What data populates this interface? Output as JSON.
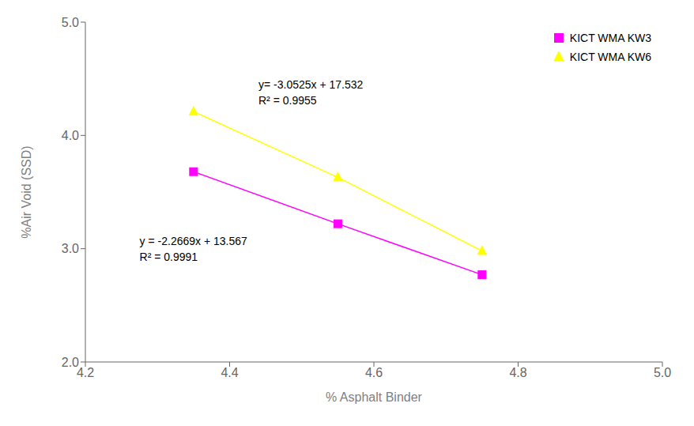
{
  "chart_data": {
    "type": "line",
    "x": [
      4.35,
      4.55,
      4.75
    ],
    "series": [
      {
        "name": "KICT WMA KW3",
        "color": "#FF00FF",
        "marker": "square",
        "values": [
          3.68,
          3.22,
          2.77
        ]
      },
      {
        "name": "KICT WMA KW6",
        "color": "#FFFF00",
        "marker": "triangle",
        "values": [
          4.21,
          3.63,
          2.98
        ]
      }
    ],
    "xlabel": "% Asphalt Binder",
    "ylabel": "%Air Void (SSD)",
    "xlim": [
      4.2,
      5.0
    ],
    "ylim": [
      2.0,
      5.0
    ],
    "xticks": [
      4.2,
      4.4,
      4.6,
      4.8,
      {
        "value": 5,
        "label": "5.0"
      }
    ],
    "yticks": [
      {
        "value": 2,
        "label": "2.0"
      },
      {
        "value": 3,
        "label": "3.0"
      },
      {
        "value": 4,
        "label": "4.0"
      },
      {
        "value": 5,
        "label": "5.0"
      }
    ],
    "annotations": [
      "y= -3.0525x + 17.532",
      "R² = 0.9955",
      "y = -2.2669x + 13.567",
      "R² = 0.9991"
    ],
    "grid": false,
    "legend": "upper right"
  }
}
